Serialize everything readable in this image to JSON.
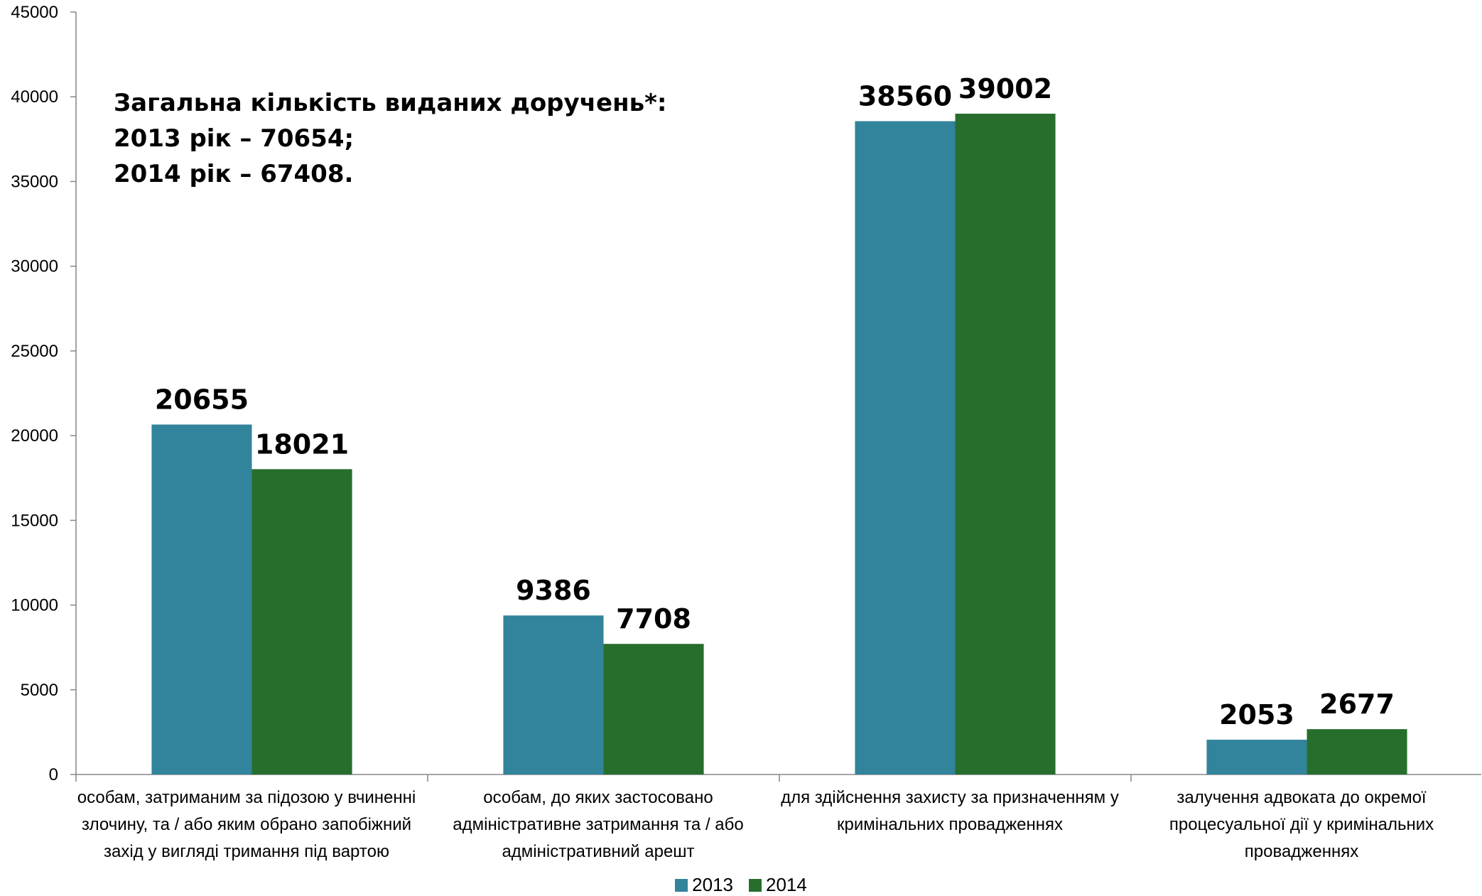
{
  "chart_data": {
    "type": "bar",
    "ylim": [
      0,
      45000
    ],
    "yticks": [
      "0",
      "5000",
      "10000",
      "15000",
      "20000",
      "25000",
      "30000",
      "35000",
      "40000",
      "45000"
    ],
    "categories": [
      [
        "особам, затриманим за підозою у вчиненні",
        "злочину, та / або яким обрано запобіжний",
        "захід у вигляді тримання під вартою"
      ],
      [
        "особам, до яких застосовано",
        "адміністративне затримання та / або",
        "адміністративний арешт"
      ],
      [
        "для здійснення захисту за призначенням у",
        "кримінальних провадженнях"
      ],
      [
        "залучення адвоката до окремої",
        "процесуальної дії у кримінальних",
        "провадженнях"
      ]
    ],
    "series": [
      {
        "name": "2013",
        "color": "#31849B",
        "values": [
          20655,
          9386,
          38560,
          2053
        ]
      },
      {
        "name": "2014",
        "color": "#276E2D",
        "values": [
          18021,
          7708,
          39002,
          2677
        ]
      }
    ],
    "annotation": [
      "Загальна кількість виданих доручень*:",
      "2013 рік – 70654;",
      "2014 рік – 67408."
    ],
    "legend_position": "bottom",
    "grid": false
  }
}
